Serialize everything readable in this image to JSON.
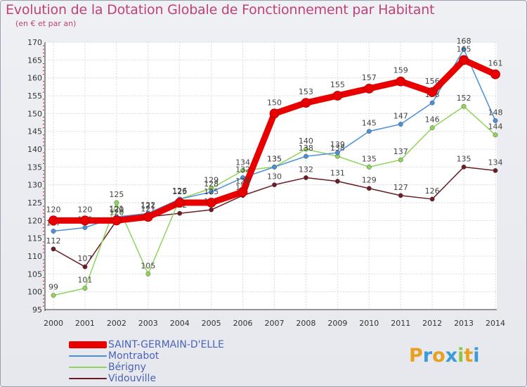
{
  "header": {
    "title": "Evolution de la Dotation Globale de Fonctionnement par Habitant",
    "subtitle": "(en € et par an)"
  },
  "chart_data": {
    "type": "line",
    "title": "Evolution de la Dotation Globale de Fonctionnement par Habitant",
    "subtitle": "(en € et par an)",
    "xlabel": "",
    "ylabel": "",
    "ylim": [
      95,
      170
    ],
    "y_ticks": [
      95,
      100,
      105,
      110,
      115,
      120,
      125,
      130,
      135,
      140,
      145,
      150,
      155,
      160,
      165,
      170
    ],
    "categories": [
      "2000",
      "2001",
      "2002",
      "2003",
      "2004",
      "2005",
      "2006",
      "2007",
      "2008",
      "2009",
      "2010",
      "2011",
      "2012",
      "2013",
      "2014"
    ],
    "grid": true,
    "legend_position": "bottom-left",
    "series": [
      {
        "name": "Vidouville",
        "color": "#6b1c24",
        "values": [
          112,
          107,
          120,
          121,
          122,
          123,
          127,
          130,
          132,
          131,
          129,
          127,
          126,
          135,
          134
        ]
      },
      {
        "name": "Bérigny",
        "color": "#8fd45a",
        "values": [
          99,
          101,
          125,
          105,
          126,
          129,
          134,
          135,
          140,
          138,
          135,
          137,
          146,
          152,
          144
        ]
      },
      {
        "name": "Montrabot",
        "color": "#4a8fd8",
        "values": [
          117,
          118,
          121,
          122,
          126,
          128,
          132,
          135,
          138,
          139,
          145,
          147,
          153,
          168,
          148
        ]
      },
      {
        "name": "SAINT-GERMAIN-D'ELLE",
        "color": "#e80000",
        "values": [
          120,
          120,
          120,
          121,
          125,
          125,
          128,
          150,
          153,
          155,
          157,
          159,
          156,
          165,
          161
        ]
      }
    ],
    "legend_order": [
      "SAINT-GERMAIN-D'ELLE",
      "Montrabot",
      "Bérigny",
      "Vidouville"
    ]
  },
  "legend": {
    "items": [
      {
        "label": "SAINT-GERMAIN-D'ELLE",
        "color": "#e80000"
      },
      {
        "label": "Montrabot",
        "color": "#4a8fd8"
      },
      {
        "label": "Bérigny",
        "color": "#8fd45a"
      },
      {
        "label": "Vidouville",
        "color": "#6b1c24"
      }
    ]
  },
  "logo": {
    "letters": [
      "P",
      "r",
      "o",
      "x",
      "i",
      "t",
      "i"
    ],
    "colors": [
      "#e8a020",
      "#3a9bd8",
      "#e8a020",
      "#3a9bd8",
      "#8cc63f",
      "#e8a020",
      "#3a9bd8"
    ]
  }
}
